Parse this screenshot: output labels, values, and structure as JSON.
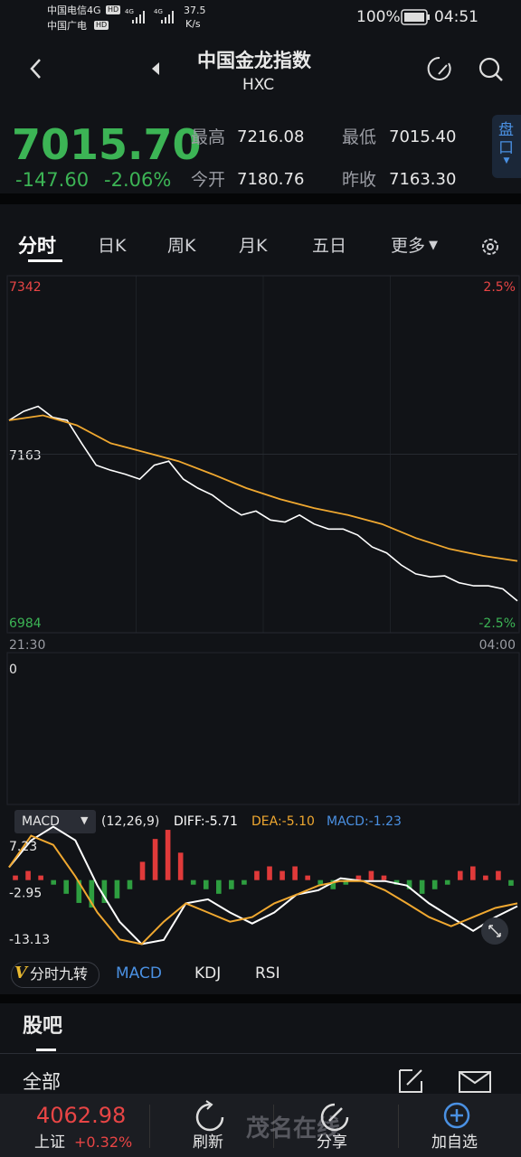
{
  "status_bar": {
    "carrier1": "中国电信4G",
    "carrier2": "中国广电",
    "badge": "HD",
    "net": "4G",
    "speed": "37.5",
    "speed_unit": "K/s",
    "battery": "100%",
    "time": "04:51"
  },
  "header": {
    "title": "中国金龙指数",
    "code": "HXC"
  },
  "quote": {
    "price": "7015.70",
    "change": "-147.60",
    "change_pct": "-2.06%",
    "high_label": "最高",
    "high": "7216.08",
    "low_label": "最低",
    "low": "7015.40",
    "open_label": "今开",
    "open": "7180.76",
    "prev_label": "昨收",
    "prev": "7163.30",
    "panel_button": "盘口"
  },
  "tabs": [
    "分时",
    "日K",
    "周K",
    "月K",
    "五日",
    "更多"
  ],
  "chart_data": [
    {
      "type": "line",
      "ylim": [
        6984,
        7342
      ],
      "yticks": [
        7342,
        7163,
        6984
      ],
      "ytick_colors": [
        "#e84545",
        "#e8e8e8",
        "#3cb455"
      ],
      "y2lim": [
        -2.5,
        2.5
      ],
      "y2ticks": [
        {
          "value": 2.5,
          "label": "2.5%"
        },
        {
          "value": -2.5,
          "label": "-2.5%"
        }
      ],
      "y2tick_colors": [
        "#e84545",
        "#3cb455"
      ],
      "x_labels": [
        "21:30",
        "04:00"
      ],
      "volume_yticks": [
        0
      ],
      "grid": true,
      "series": [
        {
          "color": "#ffffff",
          "values": [
            7197,
            7206,
            7211,
            7200,
            7197,
            7174,
            7152,
            7147,
            7143,
            7138,
            7152,
            7156,
            7138,
            7129,
            7122,
            7111,
            7102,
            7106,
            7097,
            7095,
            7102,
            7093,
            7088,
            7088,
            7082,
            7070,
            7064,
            7052,
            7043,
            7040,
            7041,
            7034,
            7031,
            7031,
            7028,
            7016
          ]
        },
        {
          "color": "#f0a830",
          "values": [
            7197,
            7202,
            7192,
            7174,
            7165,
            7156,
            7143,
            7129,
            7118,
            7109,
            7102,
            7093,
            7079,
            7068,
            7061,
            7056
          ]
        }
      ]
    },
    {
      "type": "macd",
      "title": "MACD",
      "params": "(12,26,9)",
      "stats": [
        {
          "text": "DIFF:-5.71",
          "color": "#ffffff"
        },
        {
          "text": "DEA:-5.10",
          "color": "#f0a830"
        },
        {
          "text": "MACD:-1.23",
          "color": "#4a90e2"
        }
      ],
      "ylim": [
        -15.5,
        12
      ],
      "yticks": [
        7.23,
        -2.95,
        -13.13
      ],
      "series": [
        {
          "color": "#ffffff",
          "values": [
            2.8,
            8.7,
            11.7,
            8.7,
            -1.2,
            -9.1,
            -14.0,
            -13.1,
            -5.1,
            -4.2,
            -7.1,
            -9.5,
            -7.1,
            -3.2,
            -2.2,
            0.4,
            -0.2,
            -0.2,
            -1.2,
            -5.1,
            -8.1,
            -11.1,
            -8.1,
            -5.71
          ]
        },
        {
          "color": "#f0a830",
          "values": [
            2.8,
            9.7,
            7.7,
            0.8,
            -7.1,
            -13.0,
            -14.0,
            -9.1,
            -5.1,
            -7.1,
            -9.1,
            -8.1,
            -5.1,
            -3.2,
            -1.2,
            -0.2,
            -0.2,
            -2.2,
            -5.1,
            -8.1,
            -10.1,
            -8.1,
            -6.1,
            -5.1
          ]
        }
      ],
      "histogram": {
        "up_color": "#e03a3a",
        "down_color": "#2e9e40",
        "values": [
          1,
          2,
          1,
          -1,
          -3,
          -5,
          -6,
          -5,
          -4,
          -2,
          4,
          9,
          11,
          6,
          -1,
          -2,
          -3,
          -2,
          -1,
          2,
          3,
          2,
          3,
          1,
          -1,
          -2,
          -1,
          1,
          2,
          1,
          -1,
          -2,
          -3,
          -2,
          -1,
          2,
          3,
          1,
          2,
          -1.23
        ]
      }
    }
  ],
  "indicator_tabs": {
    "logo": "V",
    "items": [
      "分时九转",
      "MACD",
      "KDJ",
      "RSI"
    ]
  },
  "forum": {
    "title": "股吧",
    "filter": "全部"
  },
  "bottom_bar": {
    "index_value": "4062.98",
    "index_name": "上证",
    "index_change": "+0.32%",
    "refresh": "刷新",
    "share": "分享",
    "add": "加自选",
    "watermark": "茂名在线"
  }
}
